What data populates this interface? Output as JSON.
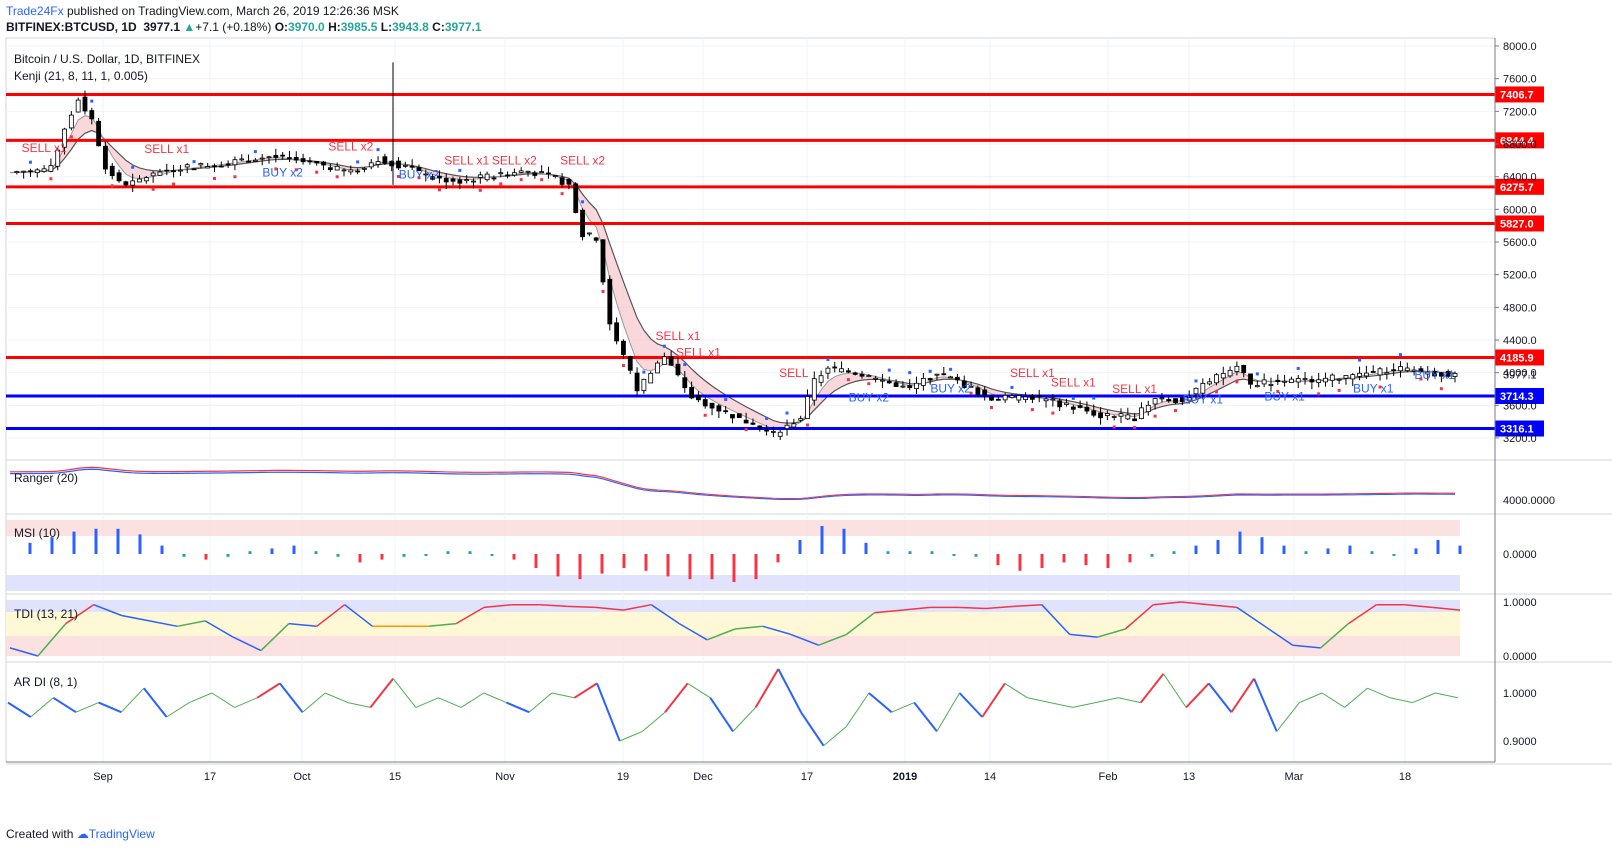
{
  "header": {
    "brand": "Trade24Fx",
    "published": "published on TradingView.com, March 26, 2019 12:26:36 MSK",
    "symbol": "BITFINEX:BTCUSD, 1D",
    "last": "3977.1",
    "change": "+7.1 (+0.18%)",
    "o_label": "O:",
    "o": "3970.0",
    "h_label": "H:",
    "h": "3985.5",
    "l_label": "L:",
    "l": "3943.8",
    "c_label": "C:",
    "c": "3977.1"
  },
  "panes": {
    "main_title": "Bitcoin / U.S. Dollar, 1D, BITFINEX",
    "main_indicator": "Kenji (21, 8, 11, 1, 0.005)",
    "ranger": "Ranger (20)",
    "msi": "MSI (10)",
    "tdi": "TDI (13, 21)",
    "ardi": "AR DI (8, 1)"
  },
  "footer": {
    "created_with": "Created with",
    "tradingview": "TradingView"
  },
  "colors": {
    "resistance": "#ff0000",
    "support": "#0000ff",
    "up": "#ffffff",
    "down": "#000000",
    "sell": "#f23645",
    "buy": "#2962ff"
  },
  "chart_data": {
    "type": "candlestick",
    "x_ticks": [
      "Sep",
      "17",
      "Oct",
      "15",
      "Nov",
      "19",
      "Dec",
      "17",
      "2019",
      "14",
      "Feb",
      "13",
      "Mar",
      "18"
    ],
    "y_ticks": [
      "8000.0",
      "7600.0",
      "7200.0",
      "6800.0",
      "6400.0",
      "6000.0",
      "5600.0",
      "5200.0",
      "4800.0",
      "4400.0",
      "4000.0",
      "3600.0",
      "3200.0"
    ],
    "ylim": [
      3200,
      8000
    ],
    "last_price": "3977.1",
    "horizontal_levels": [
      {
        "value": 7406.7,
        "label": "7406.7",
        "kind": "resistance"
      },
      {
        "value": 6844.4,
        "label": "6844.4",
        "kind": "resistance"
      },
      {
        "value": 6275.7,
        "label": "6275.7",
        "kind": "resistance"
      },
      {
        "value": 5827.0,
        "label": "5827.0",
        "kind": "resistance"
      },
      {
        "value": 4185.9,
        "label": "4185.9",
        "kind": "resistance"
      },
      {
        "value": 3714.3,
        "label": "3714.3",
        "kind": "support"
      },
      {
        "value": 3316.1,
        "label": "3316.1",
        "kind": "support"
      }
    ],
    "close_path": [
      [
        0,
        6450
      ],
      [
        6,
        6500
      ],
      [
        8,
        7000
      ],
      [
        10,
        7350
      ],
      [
        12,
        7100
      ],
      [
        14,
        6500
      ],
      [
        17,
        6280
      ],
      [
        20,
        6400
      ],
      [
        24,
        6500
      ],
      [
        30,
        6550
      ],
      [
        38,
        6650
      ],
      [
        45,
        6550
      ],
      [
        50,
        6450
      ],
      [
        54,
        6620
      ],
      [
        58,
        6520
      ],
      [
        62,
        6380
      ],
      [
        66,
        6350
      ],
      [
        70,
        6400
      ],
      [
        76,
        6470
      ],
      [
        80,
        6380
      ],
      [
        82,
        6300
      ],
      [
        84,
        5700
      ],
      [
        86,
        5650
      ],
      [
        88,
        4600
      ],
      [
        90,
        4200
      ],
      [
        92,
        3800
      ],
      [
        96,
        4200
      ],
      [
        100,
        3700
      ],
      [
        104,
        3550
      ],
      [
        108,
        3400
      ],
      [
        112,
        3250
      ],
      [
        116,
        3450
      ],
      [
        118,
        3900
      ],
      [
        120,
        4050
      ],
      [
        124,
        4000
      ],
      [
        128,
        3900
      ],
      [
        132,
        3800
      ],
      [
        136,
        4000
      ],
      [
        140,
        3850
      ],
      [
        144,
        3680
      ],
      [
        150,
        3700
      ],
      [
        156,
        3580
      ],
      [
        160,
        3480
      ],
      [
        165,
        3450
      ],
      [
        168,
        3700
      ],
      [
        172,
        3650
      ],
      [
        176,
        3900
      ],
      [
        180,
        4080
      ],
      [
        182,
        3850
      ],
      [
        186,
        3900
      ],
      [
        190,
        3900
      ],
      [
        196,
        3950
      ],
      [
        200,
        4000
      ],
      [
        204,
        4050
      ],
      [
        208,
        4000
      ],
      [
        212,
        3977
      ]
    ],
    "signals": [
      {
        "label": "SELL x1",
        "x": 5,
        "price": 6700,
        "side": "sell"
      },
      {
        "label": "SELL x1",
        "x": 23,
        "price": 6690,
        "side": "sell"
      },
      {
        "label": "SELL x2",
        "x": 50,
        "price": 6720,
        "side": "sell"
      },
      {
        "label": "BUY x2",
        "x": 40,
        "price": 6400,
        "side": "buy"
      },
      {
        "label": "BUY x2",
        "x": 60,
        "price": 6380,
        "side": "buy"
      },
      {
        "label": "SELL x1",
        "x": 67,
        "price": 6550,
        "side": "sell"
      },
      {
        "label": "SELL x2",
        "x": 74,
        "price": 6550,
        "side": "sell"
      },
      {
        "label": "SELL x2",
        "x": 84,
        "price": 6550,
        "side": "sell"
      },
      {
        "label": "SELL x1",
        "x": 98,
        "price": 4400,
        "side": "sell"
      },
      {
        "label": "SELL x1",
        "x": 101,
        "price": 4200,
        "side": "sell"
      },
      {
        "label": "SELL",
        "x": 115,
        "price": 3950,
        "side": "sell"
      },
      {
        "label": "BUY x2",
        "x": 126,
        "price": 3650,
        "side": "buy"
      },
      {
        "label": "BUY x2",
        "x": 138,
        "price": 3760,
        "side": "buy"
      },
      {
        "label": "SELL x1",
        "x": 150,
        "price": 3950,
        "side": "sell"
      },
      {
        "label": "SELL x1",
        "x": 156,
        "price": 3830,
        "side": "sell"
      },
      {
        "label": "SELL x1",
        "x": 165,
        "price": 3750,
        "side": "sell"
      },
      {
        "label": "BUY x1",
        "x": 175,
        "price": 3620,
        "side": "buy"
      },
      {
        "label": "BUY x1",
        "x": 187,
        "price": 3660,
        "side": "buy"
      },
      {
        "label": "BUY x1",
        "x": 200,
        "price": 3760,
        "side": "buy"
      },
      {
        "label": "BUY x1",
        "x": 209,
        "price": 3920,
        "side": "buy"
      }
    ],
    "ranger_value": "4000.0000",
    "msi_values": [
      0.4,
      0.6,
      0.8,
      0.9,
      0.9,
      0.7,
      0.3,
      -0.1,
      -0.2,
      -0.1,
      0.1,
      0.2,
      0.3,
      0.1,
      -0.1,
      -0.3,
      -0.2,
      -0.1,
      0.0,
      0.1,
      0.1,
      0.0,
      -0.2,
      -0.5,
      -0.8,
      -0.9,
      -0.7,
      -0.5,
      -0.6,
      -0.8,
      -0.9,
      -0.9,
      -1.0,
      -0.9,
      -0.3,
      0.5,
      1.0,
      0.9,
      0.4,
      0.1,
      0.1,
      0.1,
      0.0,
      -0.1,
      -0.4,
      -0.6,
      -0.5,
      -0.3,
      -0.4,
      -0.5,
      -0.3,
      -0.1,
      0.1,
      0.3,
      0.5,
      0.8,
      0.6,
      0.3,
      0.1,
      0.2,
      0.3,
      0.1,
      0.0,
      0.2,
      0.5,
      0.3
    ],
    "msi_label": "0.0000",
    "tdi_ticks": [
      "1.0000",
      "0.0000"
    ],
    "tdi_values": [
      0.15,
      0.0,
      0.6,
      0.95,
      0.75,
      0.65,
      0.55,
      0.65,
      0.35,
      0.1,
      0.6,
      0.55,
      0.95,
      0.55,
      0.55,
      0.55,
      0.6,
      0.9,
      0.95,
      0.95,
      0.92,
      0.9,
      0.85,
      0.95,
      0.6,
      0.3,
      0.5,
      0.55,
      0.4,
      0.2,
      0.4,
      0.8,
      0.85,
      0.9,
      0.9,
      0.88,
      0.92,
      0.95,
      0.4,
      0.35,
      0.5,
      0.95,
      1.0,
      0.95,
      0.9,
      0.55,
      0.2,
      0.15,
      0.6,
      0.95,
      0.95,
      0.9,
      0.85
    ],
    "ardi_ticks": [
      "1.0000",
      "0.9000"
    ],
    "ardi_values": [
      0.98,
      0.95,
      0.99,
      0.96,
      0.98,
      0.96,
      1.01,
      0.95,
      0.98,
      1.0,
      0.97,
      0.99,
      1.02,
      0.96,
      1.0,
      0.98,
      0.97,
      1.03,
      0.97,
      0.99,
      0.97,
      1.0,
      0.98,
      0.96,
      1.0,
      0.99,
      1.02,
      0.9,
      0.92,
      0.96,
      1.02,
      0.99,
      0.92,
      0.97,
      1.05,
      0.96,
      0.89,
      0.93,
      1.0,
      0.96,
      0.98,
      0.92,
      1.0,
      0.95,
      1.02,
      0.99,
      0.98,
      0.97,
      0.98,
      0.99,
      0.98,
      1.04,
      0.97,
      1.02,
      0.96,
      1.03,
      0.92,
      0.98,
      1.0,
      0.97,
      1.01,
      0.99,
      0.98,
      1.0,
      0.99
    ]
  }
}
